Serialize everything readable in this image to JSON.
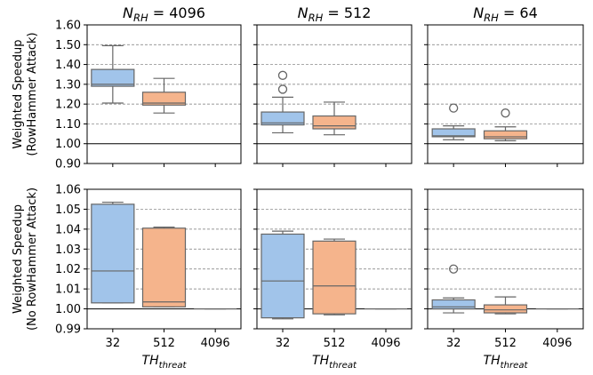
{
  "chart_data": {
    "type": "box",
    "panel_titles": [
      {
        "base": "N",
        "sub": "RH",
        "value": " = 4096"
      },
      {
        "base": "N",
        "sub": "RH",
        "value": " = 512"
      },
      {
        "base": "N",
        "sub": "RH",
        "value": " = 64"
      }
    ],
    "xlabel": {
      "base": "TH",
      "sub": "threat"
    },
    "categories": [
      "32",
      "512",
      "4096"
    ],
    "colors": {
      "32": "#a1c4ea",
      "512": "#f5b48c",
      "4096": "#a1c4ea",
      "edge": "#666666",
      "grid": "#777777",
      "ref": "#000000"
    },
    "rows": [
      {
        "ylabel_lines": [
          "Weighted Speedup",
          "(RowHammer Attack)"
        ],
        "ylim": [
          0.9,
          1.6
        ],
        "yticks": [
          0.9,
          1.0,
          1.1,
          1.2,
          1.3,
          1.4,
          1.5,
          1.6
        ],
        "ytick_labels": [
          "0.90",
          "1.00",
          "1.10",
          "1.20",
          "1.30",
          "1.40",
          "1.50",
          "1.60"
        ],
        "grid_from": 1.1,
        "reference_line": 1.0,
        "panels": [
          {
            "boxes": [
              {
                "category": "32",
                "whislo": 1.205,
                "q1": 1.29,
                "med": 1.3,
                "q3": 1.375,
                "whishi": 1.495,
                "fliers": []
              },
              {
                "category": "512",
                "whislo": 1.155,
                "q1": 1.195,
                "med": 1.205,
                "q3": 1.26,
                "whishi": 1.33,
                "fliers": []
              }
            ]
          },
          {
            "boxes": [
              {
                "category": "32",
                "whislo": 1.055,
                "q1": 1.095,
                "med": 1.105,
                "q3": 1.16,
                "whishi": 1.235,
                "fliers": [
                  1.275,
                  1.345
                ]
              },
              {
                "category": "512",
                "whislo": 1.045,
                "q1": 1.075,
                "med": 1.09,
                "q3": 1.14,
                "whishi": 1.21,
                "fliers": []
              }
            ]
          },
          {
            "boxes": [
              {
                "category": "32",
                "whislo": 1.02,
                "q1": 1.035,
                "med": 1.04,
                "q3": 1.075,
                "whishi": 1.09,
                "fliers": [
                  1.18
                ]
              },
              {
                "category": "512",
                "whislo": 1.015,
                "q1": 1.025,
                "med": 1.035,
                "q3": 1.065,
                "whishi": 1.085,
                "fliers": [
                  1.155
                ]
              }
            ]
          }
        ]
      },
      {
        "ylabel_lines": [
          "Weighted Speedup",
          "(No RowHammer Attack)"
        ],
        "ylim": [
          0.99,
          1.06
        ],
        "yticks": [
          0.99,
          1.0,
          1.01,
          1.02,
          1.03,
          1.04,
          1.05,
          1.06
        ],
        "ytick_labels": [
          "0.99",
          "1.00",
          "1.01",
          "1.02",
          "1.03",
          "1.04",
          "1.05",
          "1.06"
        ],
        "grid_from": 1.01,
        "reference_line": 1.0,
        "panels": [
          {
            "boxes": [
              {
                "category": "32",
                "whislo": 1.003,
                "q1": 1.003,
                "med": 1.019,
                "q3": 1.0525,
                "whishi": 1.0535,
                "fliers": []
              },
              {
                "category": "512",
                "whislo": 1.001,
                "q1": 1.001,
                "med": 1.0035,
                "q3": 1.0405,
                "whishi": 1.041,
                "fliers": []
              },
              {
                "category": "4096",
                "whislo": 1.0,
                "q1": 1.0,
                "med": 1.0,
                "q3": 1.0,
                "whishi": 1.0,
                "fliers": []
              }
            ]
          },
          {
            "boxes": [
              {
                "category": "32",
                "whislo": 0.995,
                "q1": 0.9955,
                "med": 1.014,
                "q3": 1.0375,
                "whishi": 1.039,
                "fliers": []
              },
              {
                "category": "512",
                "whislo": 0.997,
                "q1": 0.9975,
                "med": 1.0115,
                "q3": 1.034,
                "whishi": 1.035,
                "fliers": []
              },
              {
                "category": "4096",
                "whislo": 1.0,
                "q1": 1.0,
                "med": 1.0,
                "q3": 1.0,
                "whishi": 1.0,
                "fliers": []
              }
            ]
          },
          {
            "boxes": [
              {
                "category": "32",
                "whislo": 0.998,
                "q1": 1.0,
                "med": 1.001,
                "q3": 1.0045,
                "whishi": 1.0055,
                "fliers": [
                  1.02
                ]
              },
              {
                "category": "512",
                "whislo": 0.9975,
                "q1": 0.998,
                "med": 0.9995,
                "q3": 1.002,
                "whishi": 1.006,
                "fliers": []
              },
              {
                "category": "4096",
                "whislo": 1.0,
                "q1": 1.0,
                "med": 1.0,
                "q3": 1.0,
                "whishi": 1.0,
                "fliers": []
              }
            ]
          }
        ]
      }
    ]
  }
}
